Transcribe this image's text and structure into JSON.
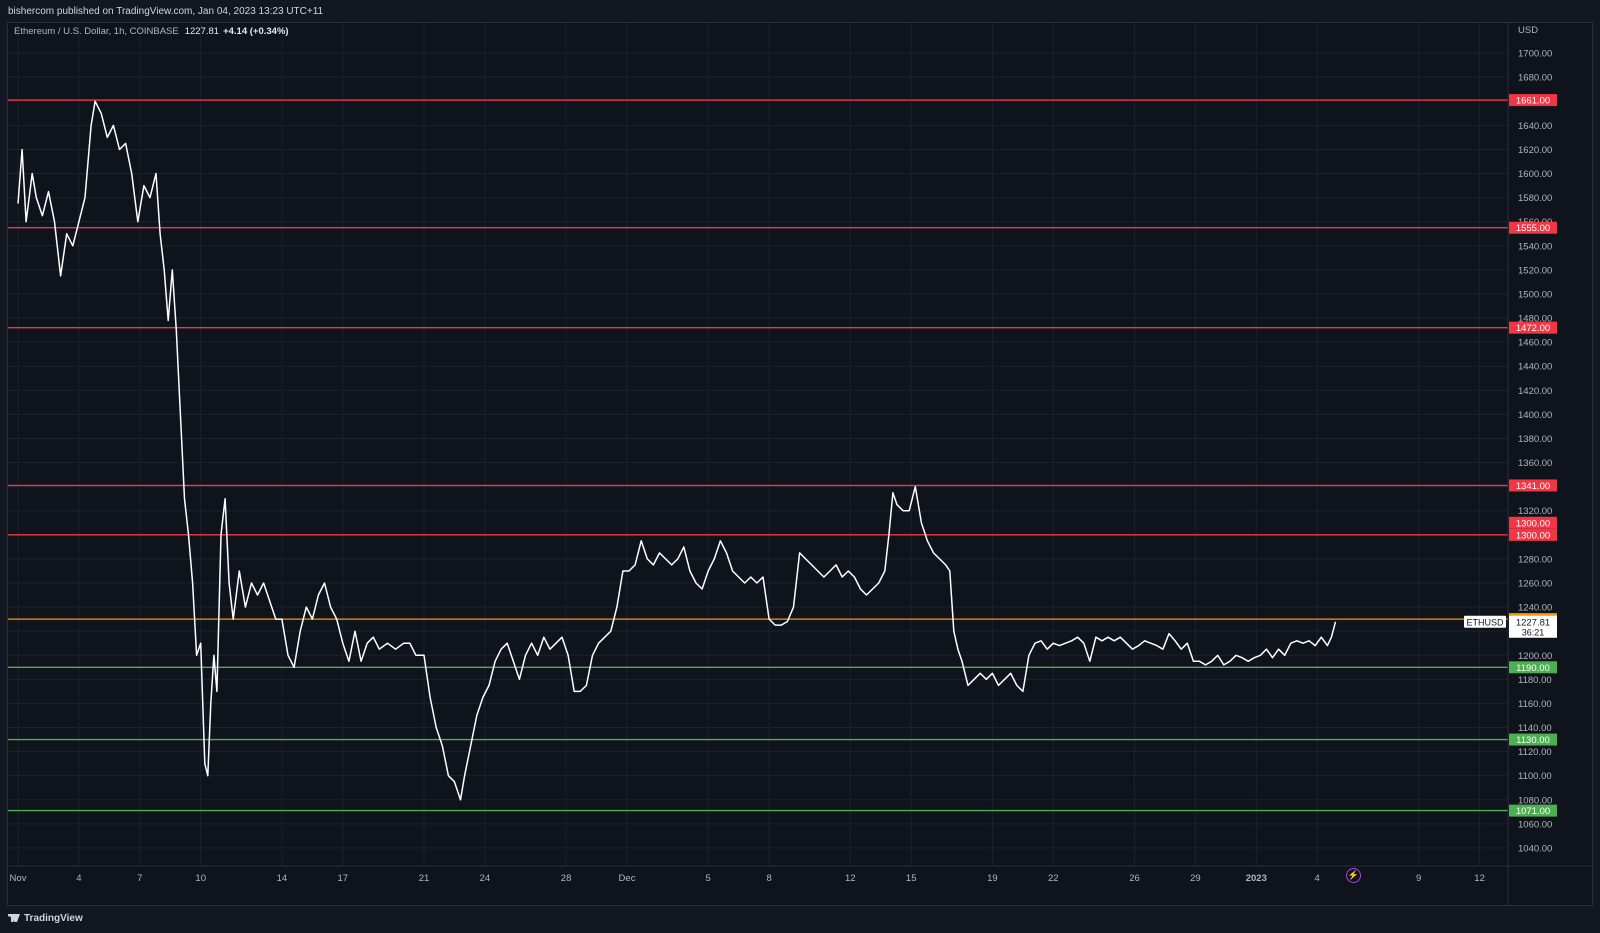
{
  "header": {
    "publisher": "bishercom published on TradingView.com, Jan 04, 2023 13:23 UTC+11"
  },
  "legend": {
    "symbol": "Ethereum / U.S. Dollar, 1h, COINBASE",
    "last": "1227.81",
    "change": "+4.14 (+0.34%)"
  },
  "footer": {
    "brand": "TradingView"
  },
  "icons": {
    "lightning": "lightning-icon",
    "logo": "tradingview-logo-icon"
  },
  "colors": {
    "background": "#0f131c",
    "price_line": "#ffffff",
    "resistance": "#f23645",
    "support": "#4caf50",
    "current": "#ff9800",
    "grid": "#1c2030"
  },
  "chart_data": {
    "type": "line",
    "currency": "USD",
    "ylim": [
      1025,
      1725
    ],
    "x_index_range": [
      0,
      62
    ],
    "y_ticks": [
      1040,
      1060,
      1080,
      1100,
      1120,
      1140,
      1160,
      1180,
      1200,
      1220,
      1240,
      1260,
      1280,
      1300,
      1320,
      1340,
      1360,
      1380,
      1400,
      1420,
      1440,
      1460,
      1480,
      1500,
      1520,
      1540,
      1560,
      1580,
      1600,
      1620,
      1640,
      1660,
      1680,
      1700
    ],
    "x_ticks": [
      {
        "label": "Nov",
        "i": 0
      },
      {
        "label": "4",
        "i": 3
      },
      {
        "label": "7",
        "i": 6
      },
      {
        "label": "10",
        "i": 9
      },
      {
        "label": "14",
        "i": 13
      },
      {
        "label": "17",
        "i": 16
      },
      {
        "label": "21",
        "i": 20
      },
      {
        "label": "24",
        "i": 23
      },
      {
        "label": "28",
        "i": 27
      },
      {
        "label": "Dec",
        "i": 30
      },
      {
        "label": "5",
        "i": 34
      },
      {
        "label": "8",
        "i": 37
      },
      {
        "label": "12",
        "i": 41
      },
      {
        "label": "15",
        "i": 44
      },
      {
        "label": "19",
        "i": 48
      },
      {
        "label": "22",
        "i": 51
      },
      {
        "label": "26",
        "i": 55
      },
      {
        "label": "29",
        "i": 58
      },
      {
        "label": "2023",
        "i": 61
      },
      {
        "label": "4",
        "i": 64
      },
      {
        "label": "9",
        "i": 69
      },
      {
        "label": "12",
        "i": 72
      }
    ],
    "levels": [
      {
        "value": 1661,
        "label": "1661.00",
        "type": "resistance"
      },
      {
        "value": 1555,
        "label": "1555.00",
        "type": "resistance"
      },
      {
        "value": 1472,
        "label": "1472.00",
        "type": "resistance"
      },
      {
        "value": 1341,
        "label": "1341.00",
        "type": "resistance"
      },
      {
        "value": 1300,
        "label": "1300.00",
        "type": "resistance"
      },
      {
        "value": 1230,
        "label": "1230.00",
        "type": "current"
      },
      {
        "value": 1190,
        "label": "1190.00",
        "type": "support"
      },
      {
        "value": 1130,
        "label": "1130.00",
        "type": "support"
      },
      {
        "value": 1071,
        "label": "1071.00",
        "type": "support"
      }
    ],
    "extra_axis_label": {
      "value": 1310,
      "label": "1300.00"
    },
    "last_price": {
      "value": 1227.81,
      "label": "1227.81",
      "countdown": "36:21",
      "ticker": "ETHUSD"
    },
    "series": [
      {
        "values": [
          [
            0.0,
            1575
          ],
          [
            0.2,
            1620
          ],
          [
            0.4,
            1560
          ],
          [
            0.7,
            1600
          ],
          [
            0.9,
            1580
          ],
          [
            1.2,
            1565
          ],
          [
            1.5,
            1585
          ],
          [
            1.8,
            1560
          ],
          [
            2.1,
            1515
          ],
          [
            2.4,
            1550
          ],
          [
            2.7,
            1540
          ],
          [
            3.0,
            1560
          ],
          [
            3.3,
            1580
          ],
          [
            3.6,
            1640
          ],
          [
            3.8,
            1660
          ],
          [
            4.1,
            1650
          ],
          [
            4.4,
            1630
          ],
          [
            4.7,
            1640
          ],
          [
            5.0,
            1620
          ],
          [
            5.3,
            1625
          ],
          [
            5.6,
            1600
          ],
          [
            5.9,
            1560
          ],
          [
            6.2,
            1590
          ],
          [
            6.5,
            1580
          ],
          [
            6.8,
            1600
          ],
          [
            7.0,
            1550
          ],
          [
            7.2,
            1520
          ],
          [
            7.4,
            1478
          ],
          [
            7.6,
            1520
          ],
          [
            7.8,
            1470
          ],
          [
            8.0,
            1400
          ],
          [
            8.2,
            1330
          ],
          [
            8.4,
            1300
          ],
          [
            8.6,
            1260
          ],
          [
            8.8,
            1200
          ],
          [
            9.0,
            1210
          ],
          [
            9.2,
            1110
          ],
          [
            9.35,
            1100
          ],
          [
            9.5,
            1160
          ],
          [
            9.65,
            1200
          ],
          [
            9.8,
            1170
          ],
          [
            10.0,
            1300
          ],
          [
            10.2,
            1330
          ],
          [
            10.4,
            1260
          ],
          [
            10.6,
            1230
          ],
          [
            10.9,
            1270
          ],
          [
            11.2,
            1240
          ],
          [
            11.5,
            1260
          ],
          [
            11.8,
            1250
          ],
          [
            12.1,
            1260
          ],
          [
            12.4,
            1245
          ],
          [
            12.7,
            1230
          ],
          [
            13.0,
            1230
          ],
          [
            13.3,
            1200
          ],
          [
            13.6,
            1190
          ],
          [
            13.9,
            1220
          ],
          [
            14.2,
            1240
          ],
          [
            14.5,
            1230
          ],
          [
            14.8,
            1250
          ],
          [
            15.1,
            1260
          ],
          [
            15.4,
            1240
          ],
          [
            15.7,
            1230
          ],
          [
            16.0,
            1210
          ],
          [
            16.3,
            1195
          ],
          [
            16.6,
            1220
          ],
          [
            16.9,
            1195
          ],
          [
            17.2,
            1210
          ],
          [
            17.5,
            1215
          ],
          [
            17.8,
            1205
          ],
          [
            18.2,
            1210
          ],
          [
            18.6,
            1205
          ],
          [
            19.0,
            1210
          ],
          [
            19.3,
            1210
          ],
          [
            19.6,
            1200
          ],
          [
            20.0,
            1200
          ],
          [
            20.3,
            1165
          ],
          [
            20.6,
            1140
          ],
          [
            20.9,
            1125
          ],
          [
            21.2,
            1100
          ],
          [
            21.5,
            1095
          ],
          [
            21.8,
            1080
          ],
          [
            22.0,
            1100
          ],
          [
            22.3,
            1125
          ],
          [
            22.6,
            1150
          ],
          [
            22.9,
            1165
          ],
          [
            23.2,
            1175
          ],
          [
            23.5,
            1195
          ],
          [
            23.8,
            1205
          ],
          [
            24.1,
            1210
          ],
          [
            24.4,
            1195
          ],
          [
            24.7,
            1180
          ],
          [
            25.0,
            1200
          ],
          [
            25.3,
            1210
          ],
          [
            25.6,
            1200
          ],
          [
            25.9,
            1215
          ],
          [
            26.2,
            1205
          ],
          [
            26.5,
            1210
          ],
          [
            26.8,
            1215
          ],
          [
            27.1,
            1200
          ],
          [
            27.4,
            1170
          ],
          [
            27.7,
            1170
          ],
          [
            28.0,
            1175
          ],
          [
            28.3,
            1200
          ],
          [
            28.6,
            1210
          ],
          [
            28.9,
            1215
          ],
          [
            29.2,
            1220
          ],
          [
            29.5,
            1240
          ],
          [
            29.8,
            1270
          ],
          [
            30.1,
            1270
          ],
          [
            30.4,
            1275
          ],
          [
            30.7,
            1295
          ],
          [
            31.0,
            1280
          ],
          [
            31.3,
            1275
          ],
          [
            31.6,
            1285
          ],
          [
            31.9,
            1280
          ],
          [
            32.2,
            1275
          ],
          [
            32.5,
            1280
          ],
          [
            32.8,
            1290
          ],
          [
            33.1,
            1270
          ],
          [
            33.4,
            1260
          ],
          [
            33.7,
            1255
          ],
          [
            34.0,
            1270
          ],
          [
            34.3,
            1280
          ],
          [
            34.6,
            1295
          ],
          [
            34.9,
            1285
          ],
          [
            35.2,
            1270
          ],
          [
            35.5,
            1265
          ],
          [
            35.8,
            1260
          ],
          [
            36.1,
            1265
          ],
          [
            36.4,
            1260
          ],
          [
            36.7,
            1265
          ],
          [
            37.0,
            1230
          ],
          [
            37.3,
            1225
          ],
          [
            37.6,
            1225
          ],
          [
            37.9,
            1228
          ],
          [
            38.2,
            1240
          ],
          [
            38.5,
            1285
          ],
          [
            38.8,
            1280
          ],
          [
            39.1,
            1275
          ],
          [
            39.4,
            1270
          ],
          [
            39.7,
            1265
          ],
          [
            40.0,
            1270
          ],
          [
            40.3,
            1275
          ],
          [
            40.6,
            1265
          ],
          [
            40.9,
            1270
          ],
          [
            41.2,
            1265
          ],
          [
            41.5,
            1255
          ],
          [
            41.8,
            1250
          ],
          [
            42.1,
            1255
          ],
          [
            42.4,
            1260
          ],
          [
            42.7,
            1270
          ],
          [
            42.9,
            1300
          ],
          [
            43.1,
            1335
          ],
          [
            43.3,
            1325
          ],
          [
            43.6,
            1320
          ],
          [
            43.9,
            1320
          ],
          [
            44.2,
            1340
          ],
          [
            44.5,
            1310
          ],
          [
            44.8,
            1295
          ],
          [
            45.1,
            1285
          ],
          [
            45.4,
            1280
          ],
          [
            45.7,
            1275
          ],
          [
            45.9,
            1270
          ],
          [
            46.1,
            1220
          ],
          [
            46.3,
            1205
          ],
          [
            46.5,
            1195
          ],
          [
            46.8,
            1175
          ],
          [
            47.1,
            1180
          ],
          [
            47.4,
            1185
          ],
          [
            47.7,
            1180
          ],
          [
            48.0,
            1185
          ],
          [
            48.3,
            1175
          ],
          [
            48.6,
            1180
          ],
          [
            48.9,
            1185
          ],
          [
            49.2,
            1175
          ],
          [
            49.5,
            1170
          ],
          [
            49.8,
            1200
          ],
          [
            50.1,
            1210
          ],
          [
            50.4,
            1212
          ],
          [
            50.7,
            1205
          ],
          [
            51.0,
            1210
          ],
          [
            51.3,
            1208
          ],
          [
            51.6,
            1210
          ],
          [
            51.9,
            1212
          ],
          [
            52.2,
            1215
          ],
          [
            52.5,
            1210
          ],
          [
            52.8,
            1195
          ],
          [
            53.1,
            1215
          ],
          [
            53.4,
            1212
          ],
          [
            53.7,
            1215
          ],
          [
            54.0,
            1212
          ],
          [
            54.3,
            1215
          ],
          [
            54.6,
            1210
          ],
          [
            54.9,
            1205
          ],
          [
            55.2,
            1208
          ],
          [
            55.5,
            1212
          ],
          [
            55.8,
            1210
          ],
          [
            56.1,
            1208
          ],
          [
            56.4,
            1205
          ],
          [
            56.7,
            1218
          ],
          [
            57.0,
            1212
          ],
          [
            57.3,
            1205
          ],
          [
            57.6,
            1210
          ],
          [
            57.9,
            1195
          ],
          [
            58.2,
            1195
          ],
          [
            58.5,
            1192
          ],
          [
            58.8,
            1195
          ],
          [
            59.1,
            1200
          ],
          [
            59.4,
            1192
          ],
          [
            59.7,
            1195
          ],
          [
            60.0,
            1200
          ],
          [
            60.3,
            1198
          ],
          [
            60.6,
            1195
          ],
          [
            60.9,
            1198
          ],
          [
            61.2,
            1200
          ],
          [
            61.5,
            1205
          ],
          [
            61.8,
            1198
          ],
          [
            62.1,
            1205
          ],
          [
            62.4,
            1200
          ],
          [
            62.7,
            1210
          ],
          [
            63.0,
            1212
          ],
          [
            63.3,
            1210
          ],
          [
            63.6,
            1212
          ],
          [
            63.9,
            1208
          ],
          [
            64.2,
            1215
          ],
          [
            64.5,
            1208
          ],
          [
            64.7,
            1215
          ],
          [
            64.9,
            1227.81
          ]
        ]
      }
    ]
  }
}
